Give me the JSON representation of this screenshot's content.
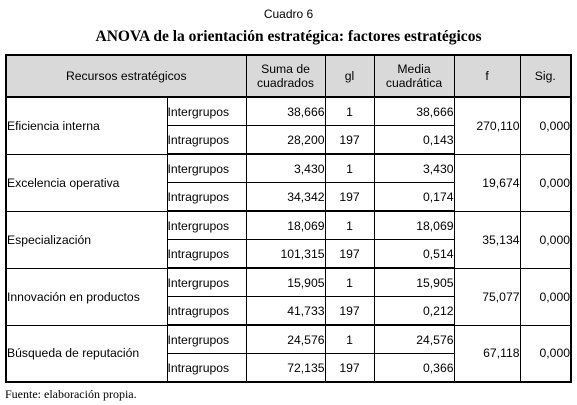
{
  "caption": "Cuadro 6",
  "title": "ANOVA de la orientación estratégica: factores estratégicos",
  "headers": {
    "resources": "Recursos estratégicos",
    "sum_squares": "Suma de cuadrados",
    "gl": "gl",
    "mean_square": "Media cuadrática",
    "f": "f",
    "sig": "Sig."
  },
  "rows": [
    {
      "factor": "Eficiencia interna",
      "inter": {
        "label": "Intergrupos",
        "ss": "38,666",
        "gl": "1",
        "ms": "38,666"
      },
      "intra": {
        "label": "Intragrupos",
        "ss": "28,200",
        "gl": "197",
        "ms": "0,143"
      },
      "f": "270,110",
      "sig": "0,000"
    },
    {
      "factor": "Excelencia operativa",
      "inter": {
        "label": "Intergrupos",
        "ss": "3,430",
        "gl": "1",
        "ms": "3,430"
      },
      "intra": {
        "label": "Intragrupos",
        "ss": "34,342",
        "gl": "197",
        "ms": "0,174"
      },
      "f": "19,674",
      "sig": "0,000"
    },
    {
      "factor": "Especialización",
      "inter": {
        "label": "Intergrupos",
        "ss": "18,069",
        "gl": "1",
        "ms": "18,069"
      },
      "intra": {
        "label": "Intragrupos",
        "ss": "101,315",
        "gl": "197",
        "ms": "0,514"
      },
      "f": "35,134",
      "sig": "0,000"
    },
    {
      "factor": "Innovación en productos",
      "inter": {
        "label": "Intergrupos",
        "ss": "15,905",
        "gl": "1",
        "ms": "15,905"
      },
      "intra": {
        "label": "Intragrupos",
        "ss": "41,733",
        "gl": "197",
        "ms": "0,212"
      },
      "f": "75,077",
      "sig": "0,000"
    },
    {
      "factor": "Búsqueda de reputación",
      "inter": {
        "label": "Intergrupos",
        "ss": "24,576",
        "gl": "1",
        "ms": "24,576"
      },
      "intra": {
        "label": "Intragrupos",
        "ss": "72,135",
        "gl": "197",
        "ms": "0,366"
      },
      "f": "67,118",
      "sig": "0,000"
    }
  ],
  "footer": "Fuente: elaboración propia."
}
